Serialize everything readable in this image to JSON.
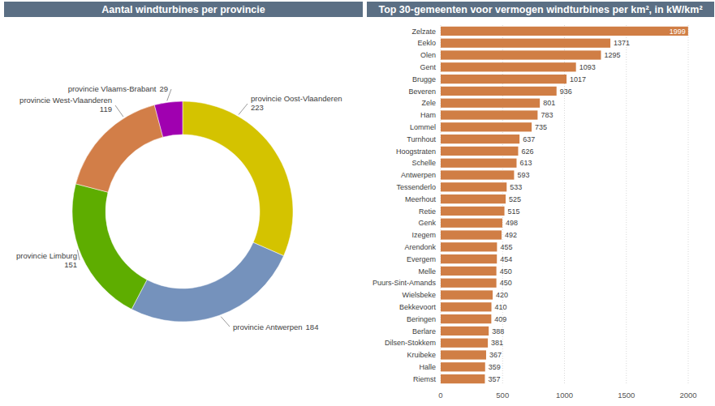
{
  "chart_data": [
    {
      "type": "donut",
      "title": "Aantal windturbines per provincie",
      "categories": [
        "provincie Oost-Vlaanderen",
        "provincie Antwerpen",
        "provincie Limburg",
        "provincie West-Vlaanderen",
        "provincie Vlaams-Brabant"
      ],
      "values": [
        223,
        184,
        151,
        119,
        29
      ],
      "colors": [
        "#d4c300",
        "#7592bc",
        "#5ead00",
        "#d27e48",
        "#a000b0"
      ],
      "data_labels": true
    },
    {
      "type": "bar",
      "orientation": "horizontal",
      "title": "Top 30-gemeenten voor vermogen windturbines per km², in kW/km²",
      "categories": [
        "Zelzate",
        "Eeklo",
        "Olen",
        "Gent",
        "Brugge",
        "Beveren",
        "Zele",
        "Ham",
        "Lommel",
        "Turnhout",
        "Hoogstraten",
        "Schelle",
        "Antwerpen",
        "Tessenderlo",
        "Meerhout",
        "Retie",
        "Genk",
        "Izegem",
        "Arendonk",
        "Evergem",
        "Melle",
        "Puurs-Sint-Amands",
        "Wielsbeke",
        "Bekkevoort",
        "Beringen",
        "Berlare",
        "Dilsen-Stokkem",
        "Kruibeke",
        "Halle",
        "Riemst"
      ],
      "values": [
        1999,
        1371,
        1295,
        1093,
        1017,
        936,
        801,
        783,
        735,
        637,
        626,
        613,
        593,
        533,
        525,
        515,
        498,
        492,
        455,
        454,
        450,
        450,
        420,
        410,
        409,
        388,
        381,
        367,
        359,
        357
      ],
      "color": "#d07e45",
      "xlim": [
        0,
        2000
      ],
      "xticks": [
        0,
        500,
        1000,
        1500,
        2000
      ],
      "grid": true,
      "data_labels": true
    }
  ]
}
